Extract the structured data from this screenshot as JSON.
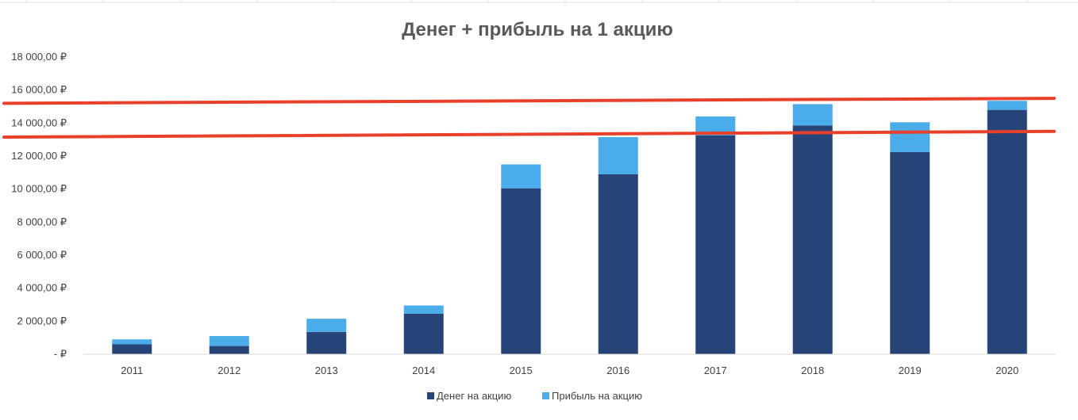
{
  "chart_data": {
    "type": "bar",
    "stacked": true,
    "title": "Денег +  прибыль на 1 акцию",
    "categories": [
      "2011",
      "2012",
      "2013",
      "2014",
      "2015",
      "2016",
      "2017",
      "2018",
      "2019",
      "2020"
    ],
    "series": [
      {
        "name": "Денег на акцию",
        "color": "#264478",
        "values": [
          600,
          500,
          1350,
          2450,
          10050,
          10900,
          13250,
          13850,
          12250,
          14800
        ]
      },
      {
        "name": "Прибыль на акцию",
        "color": "#4BACEA",
        "values": [
          300,
          600,
          800,
          500,
          1450,
          2250,
          1150,
          1300,
          1800,
          550
        ]
      }
    ],
    "ylim": [
      0,
      18000
    ],
    "yticks": [
      0,
      2000,
      4000,
      6000,
      8000,
      10000,
      12000,
      14000,
      16000,
      18000
    ],
    "ytick_labels": [
      "-  ₽",
      "2 000,00 ₽",
      "4 000,00 ₽",
      "6 000,00 ₽",
      "8 000,00 ₽",
      "10 000,00 ₽",
      "12 000,00 ₽",
      "14 000,00 ₽",
      "16 000,00 ₽",
      "18 000,00 ₽"
    ],
    "grid": false,
    "legend_position": "bottom",
    "annotations": [
      {
        "type": "line",
        "color": "#E8402A",
        "from_y": 15200,
        "to_y": 15500
      },
      {
        "type": "line",
        "color": "#E8402A",
        "from_y": 13150,
        "to_y": 13500
      }
    ]
  }
}
